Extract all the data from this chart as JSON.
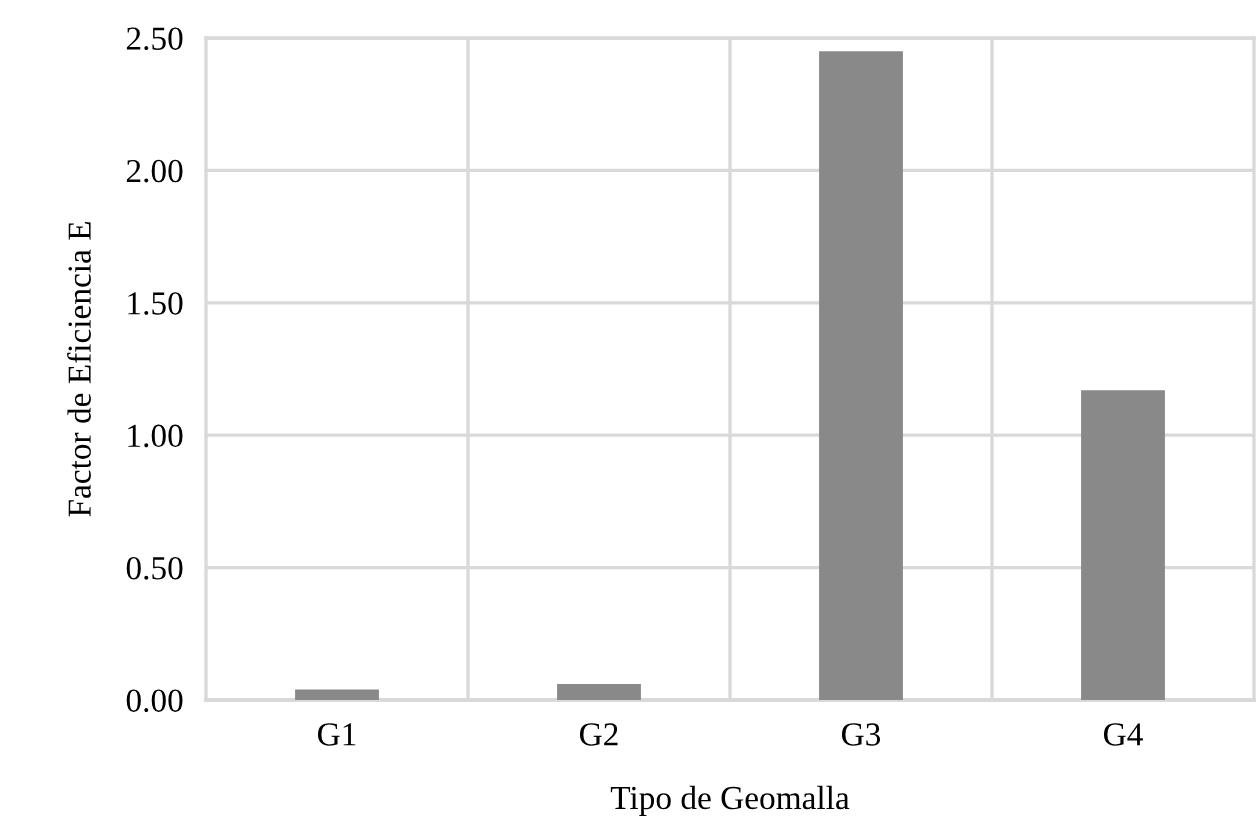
{
  "chart_data": {
    "type": "bar",
    "xlabel": "Tipo de Geomalla",
    "ylabel": "Factor de Eficiencia E",
    "categories": [
      "G1",
      "G2",
      "G3",
      "G4"
    ],
    "values": [
      0.04,
      0.06,
      2.45,
      1.17
    ],
    "color": "#898989",
    "ylim": [
      0,
      2.5
    ],
    "yticks": [
      {
        "value": 0,
        "label": "0.00"
      },
      {
        "value": 0.5,
        "label": "0.50"
      },
      {
        "value": 1.0,
        "label": "1.00"
      },
      {
        "value": 1.5,
        "label": "1.50"
      },
      {
        "value": 2.0,
        "label": "2.00"
      },
      {
        "value": 2.5,
        "label": "2.50"
      }
    ],
    "grid": true
  }
}
